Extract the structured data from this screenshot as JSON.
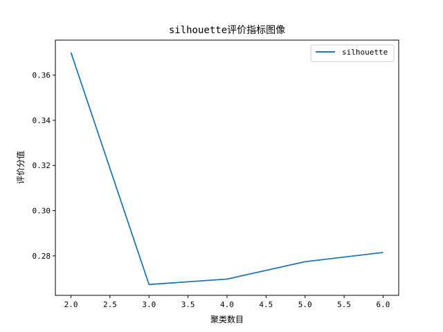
{
  "chart_data": {
    "type": "line",
    "title": "silhouette评价指标图像",
    "xlabel": "聚类数目",
    "ylabel": "评价分值",
    "x": [
      2.0,
      3.0,
      4.0,
      5.0,
      6.0
    ],
    "series": [
      {
        "name": "silhouette",
        "values": [
          0.37,
          0.2673,
          0.2697,
          0.2774,
          0.2815
        ],
        "color": "#1f77b4"
      }
    ],
    "xlim": [
      1.8,
      6.2
    ],
    "ylim": [
      0.2625,
      0.3755
    ],
    "xticks": [
      2.0,
      2.5,
      3.0,
      3.5,
      4.0,
      4.5,
      5.0,
      5.5,
      6.0
    ],
    "xtick_labels": [
      "2.0",
      "2.5",
      "3.0",
      "3.5",
      "4.0",
      "4.5",
      "5.0",
      "5.5",
      "6.0"
    ],
    "yticks": [
      0.28,
      0.3,
      0.32,
      0.34,
      0.36
    ],
    "ytick_labels": [
      "0.28",
      "0.30",
      "0.32",
      "0.34",
      "0.36"
    ],
    "grid": false,
    "legend_position": "top-right"
  }
}
